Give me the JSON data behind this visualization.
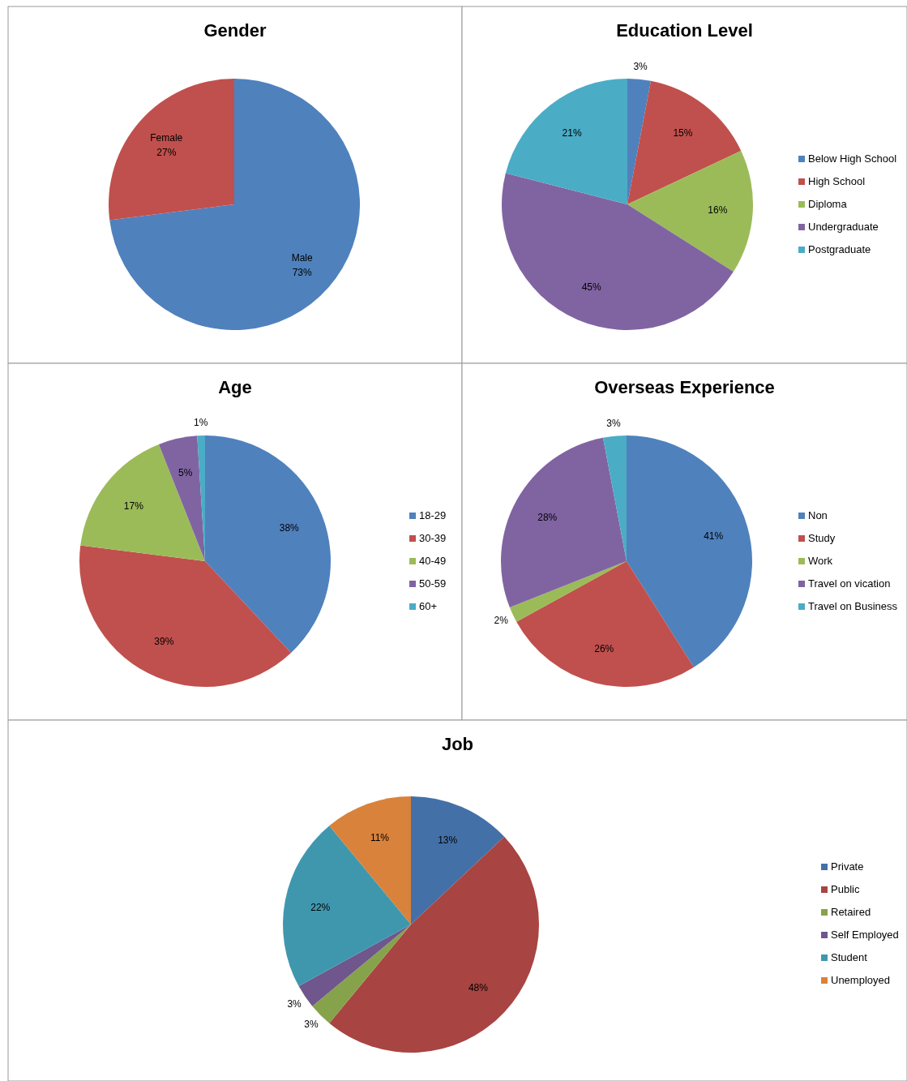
{
  "chart_data": [
    {
      "type": "pie",
      "title": "Gender",
      "categories": [
        "Male",
        "Female"
      ],
      "values": [
        73,
        27
      ],
      "value_labels": [
        "73%",
        "27%"
      ],
      "colors": [
        "#4f81bd",
        "#c0504d"
      ],
      "legend": false
    },
    {
      "type": "pie",
      "title": "Education Level",
      "categories": [
        "Below High School",
        "High School",
        "Diploma",
        "Undergraduate",
        "Postgraduate"
      ],
      "values": [
        3,
        15,
        16,
        45,
        21
      ],
      "value_labels": [
        "3%",
        "15%",
        "16%",
        "45%",
        "21%"
      ],
      "colors": [
        "#4f81bd",
        "#c0504d",
        "#9bbb59",
        "#8064a2",
        "#4bacc6"
      ],
      "legend": "right"
    },
    {
      "type": "pie",
      "title": "Age",
      "categories": [
        "18-29",
        "30-39",
        "40-49",
        "50-59",
        "60+"
      ],
      "values": [
        38,
        39,
        17,
        5,
        1
      ],
      "value_labels": [
        "38%",
        "39%",
        "17%",
        "5%",
        "1%"
      ],
      "colors": [
        "#4f81bd",
        "#c0504d",
        "#9bbb59",
        "#8064a2",
        "#4bacc6"
      ],
      "legend": "right"
    },
    {
      "type": "pie",
      "title": "Overseas Experience",
      "categories": [
        "Non",
        "Study",
        "Work",
        "Travel on vication",
        "Travel on Business"
      ],
      "values": [
        41,
        26,
        2,
        28,
        3
      ],
      "value_labels": [
        "41%",
        "26%",
        "2%",
        "28%",
        "3%"
      ],
      "colors": [
        "#4f81bd",
        "#c0504d",
        "#9bbb59",
        "#8064a2",
        "#4bacc6"
      ],
      "legend": "right"
    },
    {
      "type": "pie",
      "title": "Job",
      "categories": [
        "Private",
        "Public",
        "Retaired",
        "Self Employed",
        "Student",
        "Unemployed"
      ],
      "values": [
        13,
        48,
        3,
        3,
        22,
        11
      ],
      "value_labels": [
        "13%",
        "48%",
        "3%",
        "3%",
        "22%",
        "11%"
      ],
      "colors": [
        "#4470a8",
        "#a84441",
        "#86a34b",
        "#6f568c",
        "#3f97ae",
        "#d9823b"
      ],
      "legend": "right"
    }
  ]
}
